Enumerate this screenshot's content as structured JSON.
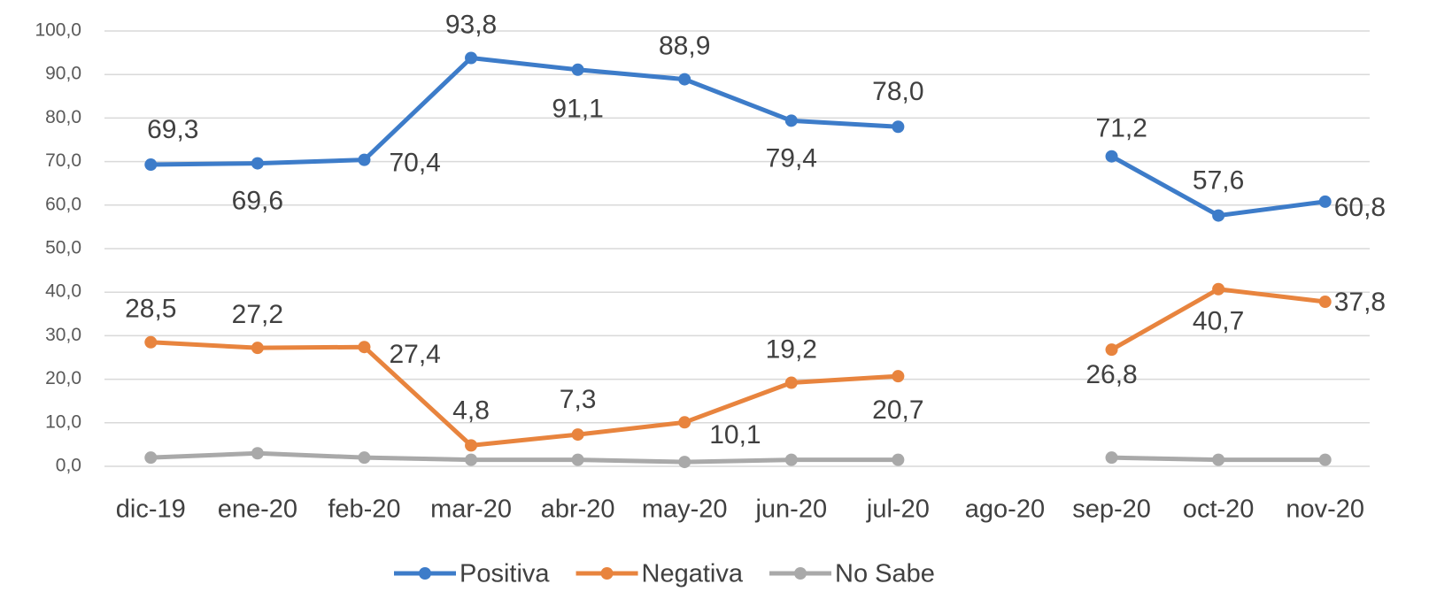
{
  "chart_data": {
    "type": "line",
    "categories": [
      "dic-19",
      "ene-20",
      "feb-20",
      "mar-20",
      "abr-20",
      "may-20",
      "jun-20",
      "jul-20",
      "ago-20",
      "sep-20",
      "oct-20",
      "nov-20"
    ],
    "series": [
      {
        "name": "Positiva",
        "color": "#3d7cc9",
        "values": [
          69.3,
          69.6,
          70.4,
          93.8,
          91.1,
          88.9,
          79.4,
          78.0,
          null,
          71.2,
          57.6,
          60.8
        ],
        "value_labels": [
          "69,3",
          "69,6",
          "70,4",
          "93,8",
          "91,1",
          "88,9",
          "79,4",
          "78,0",
          null,
          "71,2",
          "57,6",
          "60,8"
        ]
      },
      {
        "name": "Negativa",
        "color": "#e8843e",
        "values": [
          28.5,
          27.2,
          27.4,
          4.8,
          7.3,
          10.1,
          19.2,
          20.7,
          null,
          26.8,
          40.7,
          37.8
        ],
        "value_labels": [
          "28,5",
          "27,2",
          "27,4",
          "4,8",
          "7,3",
          "10,1",
          "19,2",
          "20,7",
          null,
          "26,8",
          "40,7",
          "37,8"
        ]
      },
      {
        "name": "No Sabe",
        "color": "#a9a9a9",
        "values": [
          2.0,
          3.0,
          2.0,
          1.5,
          1.5,
          1.0,
          1.5,
          1.5,
          null,
          2.0,
          1.5,
          1.5
        ]
      }
    ],
    "ylim": [
      0,
      100
    ],
    "yticks": [
      {
        "value": 0,
        "label": "0,0"
      },
      {
        "value": 10,
        "label": "10,0"
      },
      {
        "value": 20,
        "label": "20,0"
      },
      {
        "value": 30,
        "label": "30,0"
      },
      {
        "value": 40,
        "label": "40,0"
      },
      {
        "value": 50,
        "label": "50,0"
      },
      {
        "value": 60,
        "label": "60,0"
      },
      {
        "value": 70,
        "label": "70,0"
      },
      {
        "value": 80,
        "label": "80,0"
      },
      {
        "value": 90,
        "label": "90,0"
      },
      {
        "value": 100,
        "label": "100,0"
      }
    ],
    "grid": true,
    "legend": "bottom"
  }
}
